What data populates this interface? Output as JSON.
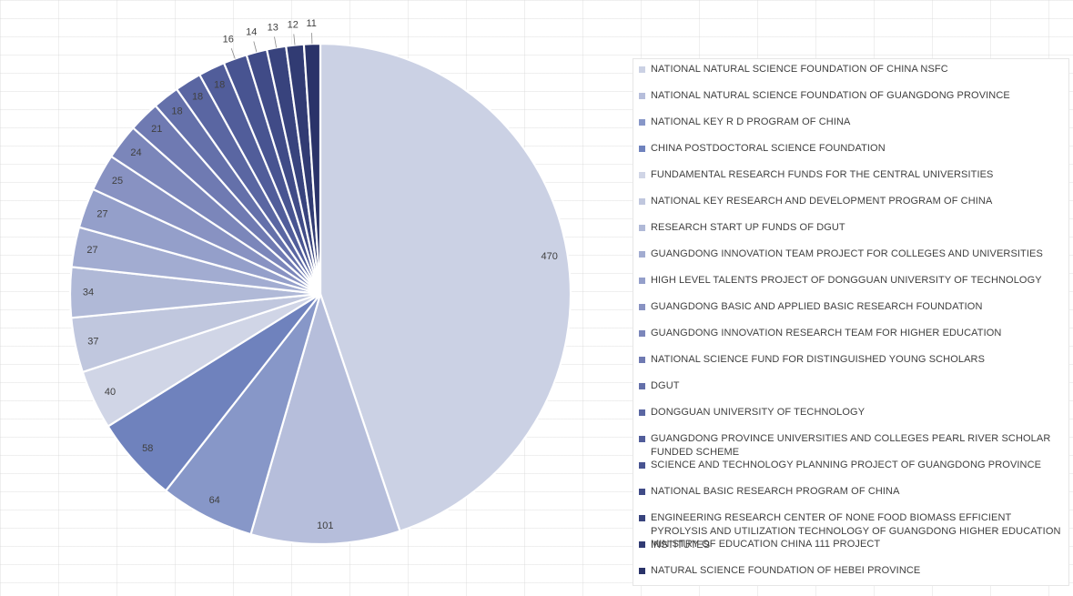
{
  "chart_data": {
    "type": "pie",
    "title": "",
    "legend_position": "right",
    "categories": [
      "NATIONAL NATURAL SCIENCE FOUNDATION OF CHINA NSFC",
      "NATIONAL NATURAL SCIENCE FOUNDATION OF GUANGDONG PROVINCE",
      "NATIONAL KEY R D PROGRAM OF CHINA",
      "CHINA POSTDOCTORAL SCIENCE FOUNDATION",
      "FUNDAMENTAL RESEARCH FUNDS FOR THE CENTRAL UNIVERSITIES",
      "NATIONAL KEY RESEARCH AND DEVELOPMENT PROGRAM OF CHINA",
      "RESEARCH START UP FUNDS OF DGUT",
      "GUANGDONG INNOVATION TEAM PROJECT FOR COLLEGES AND UNIVERSITIES",
      "HIGH LEVEL TALENTS PROJECT OF DONGGUAN UNIVERSITY OF TECHNOLOGY",
      "GUANGDONG BASIC AND APPLIED BASIC RESEARCH FOUNDATION",
      "GUANGDONG INNOVATION RESEARCH TEAM FOR HIGHER EDUCATION",
      "NATIONAL SCIENCE FUND FOR DISTINGUISHED YOUNG SCHOLARS",
      "DGUT",
      "DONGGUAN UNIVERSITY OF TECHNOLOGY",
      "GUANGDONG PROVINCE UNIVERSITIES AND COLLEGES PEARL RIVER SCHOLAR FUNDED SCHEME",
      "SCIENCE AND TECHNOLOGY PLANNING PROJECT OF GUANGDONG PROVINCE",
      "NATIONAL BASIC RESEARCH PROGRAM OF CHINA",
      "ENGINEERING RESEARCH CENTER OF NONE FOOD BIOMASS EFFICIENT PYROLYSIS AND UTILIZATION TECHNOLOGY OF GUANGDONG HIGHER EDUCATION INSTITUTES",
      "MINISTRY OF EDUCATION CHINA 111 PROJECT",
      "NATURAL SCIENCE FOUNDATION OF HEBEI PROVINCE"
    ],
    "values": [
      470,
      101,
      64,
      58,
      40,
      37,
      34,
      27,
      27,
      25,
      24,
      21,
      18,
      18,
      18,
      16,
      14,
      13,
      12,
      11
    ],
    "colors": [
      "#cbd1e4",
      "#b6bedb",
      "#8797c8",
      "#6f82bd",
      "#d0d5e6",
      "#c0c7de",
      "#b0b9d7",
      "#a2acd1",
      "#949fca",
      "#8892c2",
      "#7b86ba",
      "#6f7ab2",
      "#6470aa",
      "#5a66a2",
      "#515d9a",
      "#485491",
      "#404b87",
      "#38437d",
      "#313b73",
      "#2a3369"
    ]
  }
}
